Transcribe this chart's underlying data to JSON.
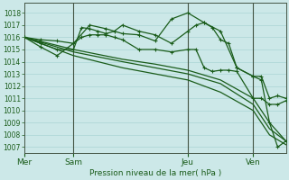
{
  "bg_color": "#cce8e8",
  "grid_color": "#aad4d4",
  "line_color": "#1a5c1a",
  "xlabel": "Pression niveau de la mer( hPa )",
  "ylim": [
    1006.5,
    1018.8
  ],
  "yticks": [
    1007,
    1008,
    1009,
    1010,
    1011,
    1012,
    1013,
    1014,
    1015,
    1016,
    1017,
    1018
  ],
  "day_labels": [
    "Mer",
    "Sam",
    "Jeu",
    "Ven"
  ],
  "day_positions": [
    0,
    6,
    20,
    28
  ],
  "xlim": [
    0,
    32
  ],
  "vlines": [
    6,
    20,
    28
  ],
  "smooth_series": [
    {
      "x": [
        0,
        6,
        12,
        16,
        20,
        24,
        28,
        30,
        32
      ],
      "y": [
        1016.0,
        1015.0,
        1014.2,
        1013.8,
        1013.3,
        1012.5,
        1011.0,
        1009.0,
        1007.5
      ]
    },
    {
      "x": [
        0,
        6,
        12,
        16,
        20,
        24,
        28,
        30,
        32
      ],
      "y": [
        1016.0,
        1014.8,
        1014.0,
        1013.5,
        1013.0,
        1012.2,
        1010.5,
        1008.5,
        1007.5
      ]
    },
    {
      "x": [
        0,
        6,
        12,
        16,
        20,
        24,
        28,
        30,
        32
      ],
      "y": [
        1016.0,
        1014.5,
        1013.5,
        1013.0,
        1012.5,
        1011.5,
        1010.0,
        1008.0,
        1007.2
      ]
    }
  ],
  "marker_series": [
    {
      "x": [
        0,
        2,
        4,
        6,
        7,
        8,
        9,
        10,
        11,
        12,
        14,
        16,
        18,
        20,
        21,
        22,
        23,
        24,
        25,
        26,
        28,
        29,
        30,
        31,
        32
      ],
      "y": [
        1016.0,
        1015.8,
        1015.7,
        1015.5,
        1016.0,
        1016.2,
        1016.2,
        1016.2,
        1016.0,
        1015.8,
        1015.0,
        1015.0,
        1014.8,
        1015.0,
        1015.0,
        1013.5,
        1013.2,
        1013.3,
        1013.3,
        1013.2,
        1011.0,
        1011.0,
        1010.5,
        1010.5,
        1010.8
      ]
    },
    {
      "x": [
        0,
        2,
        4,
        6,
        7,
        8,
        9,
        10,
        11,
        12,
        14,
        16,
        18,
        20,
        21,
        22,
        23,
        24,
        25,
        26,
        28,
        29,
        30,
        31,
        32
      ],
      "y": [
        1016.0,
        1015.5,
        1015.0,
        1015.0,
        1016.8,
        1016.7,
        1016.5,
        1016.3,
        1016.5,
        1017.0,
        1016.5,
        1016.2,
        1015.5,
        1016.5,
        1017.0,
        1017.2,
        1016.8,
        1015.8,
        1015.5,
        1013.5,
        1012.8,
        1012.8,
        1011.0,
        1011.2,
        1011.0
      ]
    },
    {
      "x": [
        0,
        2,
        4,
        6,
        8,
        10,
        12,
        14,
        16,
        18,
        20,
        22,
        24,
        26,
        28,
        29,
        30,
        31,
        32
      ],
      "y": [
        1016.0,
        1015.2,
        1014.5,
        1015.5,
        1017.0,
        1016.7,
        1016.3,
        1016.2,
        1015.7,
        1017.5,
        1018.0,
        1017.2,
        1016.5,
        1013.5,
        1012.8,
        1012.5,
        1009.0,
        1007.0,
        1007.5
      ]
    }
  ]
}
